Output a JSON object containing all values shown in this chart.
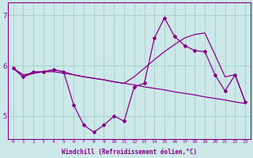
{
  "xlabel": "Windchill (Refroidissement éolien,°C)",
  "bg_color": "#cce8e8",
  "grid_color": "#aad0d0",
  "line_color": "#880088",
  "xlim": [
    -0.5,
    23.5
  ],
  "ylim": [
    4.55,
    7.25
  ],
  "yticks": [
    5,
    6,
    7
  ],
  "xticks": [
    0,
    1,
    2,
    3,
    4,
    5,
    6,
    7,
    8,
    9,
    10,
    11,
    12,
    13,
    14,
    15,
    16,
    17,
    18,
    19,
    20,
    21,
    22,
    23
  ],
  "series1_x": [
    0,
    1,
    2,
    3,
    4,
    5,
    6,
    7,
    8,
    9,
    10,
    11,
    12,
    13,
    14,
    15,
    16,
    17,
    18,
    19,
    20,
    21,
    22,
    23
  ],
  "series1_y": [
    5.95,
    5.78,
    5.88,
    5.88,
    5.92,
    5.88,
    5.22,
    4.82,
    4.68,
    4.82,
    5.0,
    4.9,
    5.58,
    5.65,
    6.55,
    6.95,
    6.58,
    6.4,
    6.3,
    6.28,
    5.82,
    5.5,
    5.82,
    5.28
  ],
  "series2_x": [
    0,
    1,
    2,
    3,
    4,
    5,
    6,
    7,
    8,
    9,
    10,
    11,
    12,
    13,
    14,
    15,
    16,
    17,
    18,
    19,
    20,
    21,
    22,
    23
  ],
  "series2_y": [
    5.95,
    5.82,
    5.85,
    5.88,
    5.88,
    5.85,
    5.82,
    5.78,
    5.75,
    5.72,
    5.68,
    5.65,
    5.62,
    5.58,
    5.55,
    5.52,
    5.48,
    5.45,
    5.42,
    5.38,
    5.35,
    5.32,
    5.28,
    5.25
  ],
  "series3_x": [
    0,
    1,
    2,
    3,
    4,
    5,
    6,
    7,
    8,
    9,
    10,
    11,
    12,
    13,
    14,
    15,
    16,
    17,
    18,
    19,
    20,
    21,
    22,
    23
  ],
  "series3_y": [
    5.95,
    5.78,
    5.85,
    5.88,
    5.92,
    5.88,
    5.82,
    5.78,
    5.75,
    5.72,
    5.68,
    5.65,
    5.78,
    5.95,
    6.12,
    6.28,
    6.42,
    6.55,
    6.62,
    6.65,
    6.22,
    5.78,
    5.82,
    5.28
  ]
}
